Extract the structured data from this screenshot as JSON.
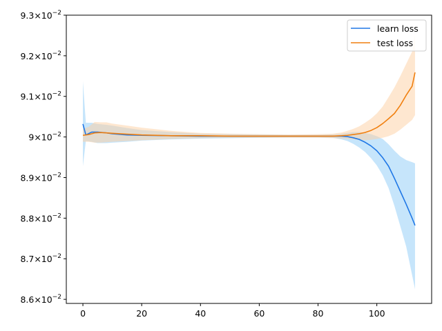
{
  "chart_data": {
    "type": "line",
    "title": "",
    "xlabel": "",
    "ylabel": "",
    "xlim": [
      -5.65,
      118.65
    ],
    "ylim": [
      0.0859,
      0.093
    ],
    "grid": false,
    "legend_position": "top-right",
    "x_ticks": [
      0,
      20,
      40,
      60,
      80,
      100
    ],
    "x_tick_labels": [
      "0",
      "20",
      "40",
      "60",
      "80",
      "100"
    ],
    "y_ticks": [
      0.086,
      0.087,
      0.088,
      0.089,
      0.09,
      0.091,
      0.092,
      0.093
    ],
    "y_tick_mantissas": [
      "8.6",
      "8.7",
      "8.8",
      "8.9",
      "9",
      "9.1",
      "9.2",
      "9.3"
    ],
    "y_tick_mult": "×",
    "y_tick_base": "10",
    "y_tick_exp": "−2",
    "series": [
      {
        "name": "learn loss",
        "color": "#1f77e6",
        "band_color": "#8ecbf7",
        "x": [
          0,
          1,
          3,
          5,
          8,
          10,
          15,
          20,
          30,
          40,
          50,
          60,
          70,
          80,
          85,
          88,
          90,
          92,
          94,
          96,
          98,
          100,
          102,
          104,
          106,
          108,
          110,
          112,
          113
        ],
        "y": [
          0.09032,
          0.09005,
          0.09012,
          0.09012,
          0.0901,
          0.09008,
          0.09005,
          0.09004,
          0.09003,
          0.09002,
          0.09002,
          0.09002,
          0.09002,
          0.09002,
          0.09002,
          0.09002,
          0.09001,
          0.08998,
          0.08994,
          0.08987,
          0.08978,
          0.08966,
          0.08949,
          0.08928,
          0.08898,
          0.08866,
          0.08834,
          0.088,
          0.08782
        ],
        "lower": [
          0.08928,
          0.0899,
          0.08988,
          0.08985,
          0.08985,
          0.08986,
          0.08988,
          0.08991,
          0.08994,
          0.08996,
          0.08997,
          0.08998,
          0.08999,
          0.08999,
          0.08998,
          0.08994,
          0.0899,
          0.08983,
          0.08974,
          0.08963,
          0.08948,
          0.0893,
          0.08906,
          0.08874,
          0.0883,
          0.0878,
          0.0873,
          0.0866,
          0.08625
        ],
        "upper": [
          0.09137,
          0.09035,
          0.09035,
          0.09032,
          0.0903,
          0.09028,
          0.09022,
          0.09017,
          0.09012,
          0.09008,
          0.09007,
          0.09006,
          0.09005,
          0.09005,
          0.09006,
          0.09008,
          0.0901,
          0.09012,
          0.09012,
          0.0901,
          0.09007,
          0.09002,
          0.08995,
          0.08982,
          0.08966,
          0.08952,
          0.08943,
          0.08938,
          0.08935
        ]
      },
      {
        "name": "test loss",
        "color": "#f07f0e",
        "band_color": "#fdcfa2",
        "x": [
          0,
          2,
          4,
          6,
          8,
          10,
          15,
          20,
          30,
          40,
          50,
          60,
          70,
          80,
          85,
          88,
          90,
          92,
          94,
          96,
          98,
          100,
          102,
          104,
          106,
          108,
          110,
          112,
          113
        ],
        "y": [
          0.09004,
          0.09006,
          0.0901,
          0.09011,
          0.0901,
          0.09009,
          0.09007,
          0.09005,
          0.09003,
          0.09003,
          0.09002,
          0.09002,
          0.09002,
          0.09002,
          0.09002,
          0.09003,
          0.09004,
          0.09006,
          0.09008,
          0.09011,
          0.09016,
          0.09023,
          0.09033,
          0.09045,
          0.09058,
          0.09078,
          0.09103,
          0.09125,
          0.09159
        ],
        "lower": [
          0.08988,
          0.08988,
          0.08986,
          0.08986,
          0.08987,
          0.08988,
          0.0899,
          0.08992,
          0.08995,
          0.08997,
          0.08998,
          0.08998,
          0.08998,
          0.08998,
          0.08997,
          0.08996,
          0.08995,
          0.08994,
          0.08993,
          0.08992,
          0.08993,
          0.08995,
          0.08998,
          0.09002,
          0.09008,
          0.09018,
          0.0903,
          0.09042,
          0.09054
        ],
        "upper": [
          0.0902,
          0.09025,
          0.09037,
          0.09036,
          0.09036,
          0.09033,
          0.09028,
          0.09023,
          0.09015,
          0.0901,
          0.09008,
          0.09007,
          0.09006,
          0.09007,
          0.09008,
          0.09011,
          0.09015,
          0.0902,
          0.09026,
          0.09035,
          0.09045,
          0.09058,
          0.09075,
          0.09098,
          0.09122,
          0.0915,
          0.0918,
          0.0921,
          0.09255
        ]
      }
    ]
  }
}
